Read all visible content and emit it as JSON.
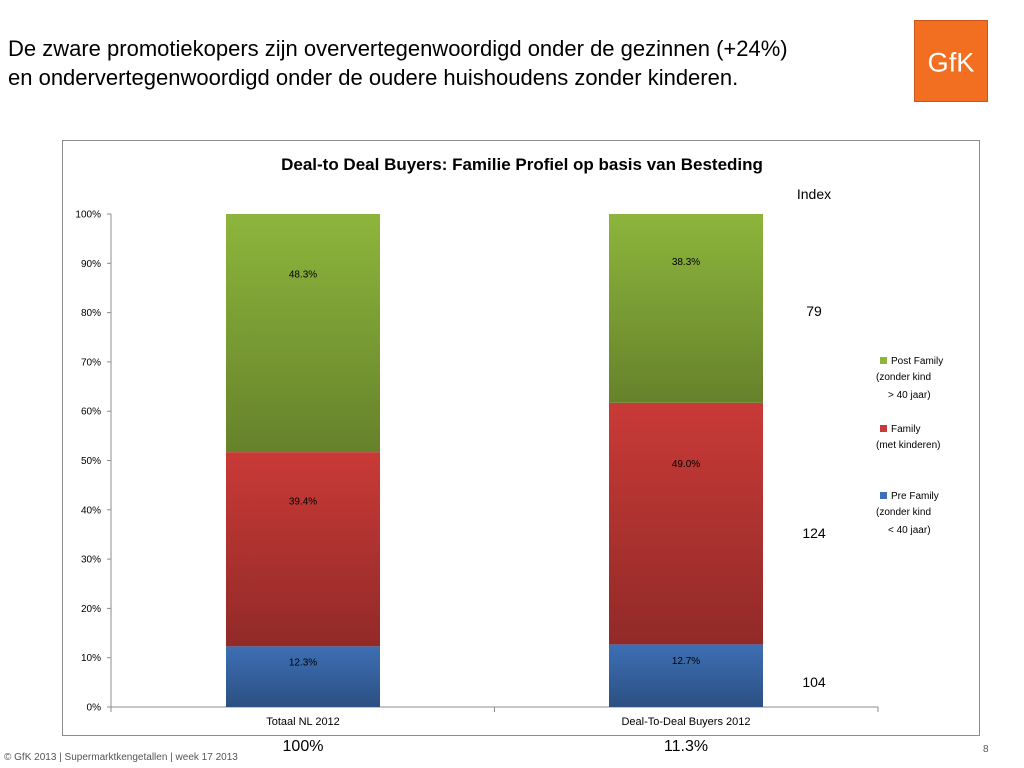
{
  "slide": {
    "headline_line1": "De zware promotiekopers zijn oververtegenwoordigd onder de gezinnen (+24%)",
    "headline_line2": "en ondervertegenwoordigd onder de oudere huishoudens zonder kinderen.",
    "logo_text": "GfK",
    "footer": "© GfK 2013 | Supermarktkengetallen | week 17  2013",
    "page_number": "8"
  },
  "chart_data": {
    "type": "bar",
    "stacked": true,
    "title": "Deal-to Deal Buyers: Familie Profiel op basis van Besteding",
    "categories": [
      "Totaal NL 2012",
      "Deal-To-Deal Buyers 2012"
    ],
    "category_shares": [
      "100%",
      "11.3%"
    ],
    "series": [
      {
        "name": "Pre Family",
        "legend_lines": [
          "Pre Family",
          "(zonder kind",
          "< 40 jaar)"
        ],
        "values": [
          12.3,
          12.7
        ],
        "labels": [
          "12.3%",
          "12.7%"
        ],
        "color": "#3d6fb5",
        "index": "104"
      },
      {
        "name": "Family",
        "legend_lines": [
          "Family",
          "(met kinderen)"
        ],
        "values": [
          39.4,
          49.0
        ],
        "labels": [
          "39.4%",
          "49.0%"
        ],
        "color": "#c93a37",
        "index": "124"
      },
      {
        "name": "Post Family",
        "legend_lines": [
          "Post Family",
          "(zonder kind",
          "> 40 jaar)"
        ],
        "values": [
          48.3,
          38.3
        ],
        "labels": [
          "48.3%",
          "38.3%"
        ],
        "color": "#8db53c",
        "index": "79"
      }
    ],
    "index_label": "Index",
    "ylim": [
      0,
      100
    ],
    "yticks": [
      "0%",
      "10%",
      "20%",
      "30%",
      "40%",
      "50%",
      "60%",
      "70%",
      "80%",
      "90%",
      "100%"
    ],
    "grid": false,
    "legend_position": "right"
  }
}
